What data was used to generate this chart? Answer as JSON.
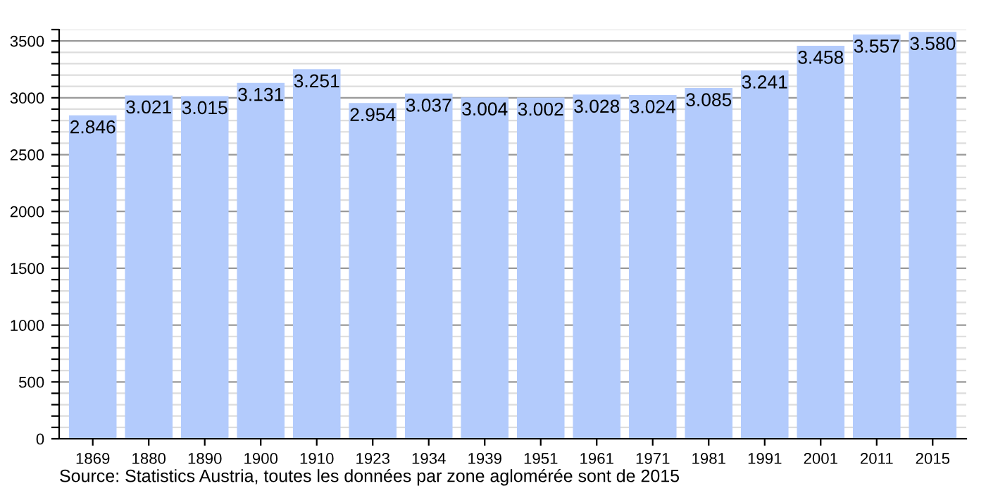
{
  "chart_data": {
    "type": "bar",
    "categories": [
      "1869",
      "1880",
      "1890",
      "1900",
      "1910",
      "1923",
      "1934",
      "1939",
      "1951",
      "1961",
      "1971",
      "1981",
      "1991",
      "2001",
      "2011",
      "2015"
    ],
    "values": [
      2846,
      3021,
      3015,
      3131,
      3251,
      2954,
      3037,
      3004,
      3002,
      3028,
      3024,
      3085,
      3241,
      3458,
      3557,
      3580
    ],
    "value_labels": [
      "2.846",
      "3.021",
      "3.015",
      "3.131",
      "3.251",
      "2.954",
      "3.037",
      "3.004",
      "3.002",
      "3.028",
      "3.024",
      "3.085",
      "3.241",
      "3.458",
      "3.557",
      "3.580"
    ],
    "color": "#b3cbfc",
    "ylim": [
      0,
      3600
    ],
    "yticks": [
      0,
      {
        "value": 100,
        "label": null
      },
      {
        "value": 200,
        "label": null
      },
      {
        "value": 300,
        "label": null
      },
      {
        "value": 400,
        "label": null
      },
      500,
      {
        "value": 600,
        "label": null
      },
      {
        "value": 700,
        "label": null
      },
      {
        "value": 800,
        "label": null
      },
      {
        "value": 900,
        "label": null
      },
      1000,
      {
        "value": 1100,
        "label": null
      },
      {
        "value": 1200,
        "label": null
      },
      {
        "value": 1300,
        "label": null
      },
      {
        "value": 1400,
        "label": null
      },
      1500,
      {
        "value": 1600,
        "label": null
      },
      {
        "value": 1700,
        "label": null
      },
      {
        "value": 1800,
        "label": null
      },
      {
        "value": 1900,
        "label": null
      },
      2000,
      {
        "value": 2100,
        "label": null
      },
      {
        "value": 2200,
        "label": null
      },
      {
        "value": 2300,
        "label": null
      },
      {
        "value": 2400,
        "label": null
      },
      2500,
      {
        "value": 2600,
        "label": null
      },
      {
        "value": 2700,
        "label": null
      },
      {
        "value": 2800,
        "label": null
      },
      {
        "value": 2900,
        "label": null
      },
      3000,
      {
        "value": 3100,
        "label": null
      },
      {
        "value": 3200,
        "label": null
      },
      {
        "value": 3300,
        "label": null
      },
      {
        "value": 3400,
        "label": null
      },
      3500,
      {
        "value": 3600,
        "label": null
      }
    ],
    "grid": "y",
    "annotations": [
      "Source: Statistics Austria, toutes les données par zone aglomérée sont de 2015"
    ]
  }
}
